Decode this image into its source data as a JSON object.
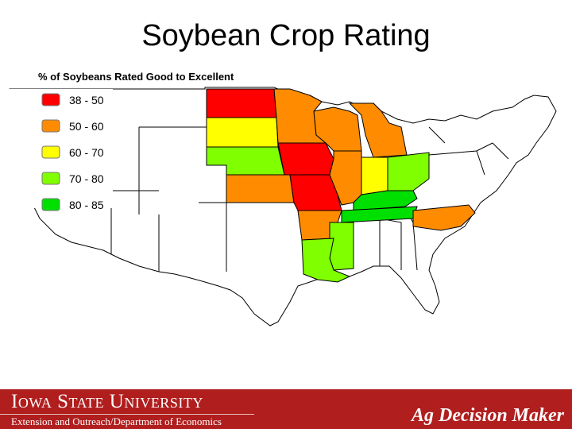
{
  "slide": {
    "title": "Soybean Crop Rating"
  },
  "map": {
    "heading": "% of Soybeans Rated Good to Excellent",
    "legend": [
      {
        "label": "38 - 50",
        "color": "#ff0000"
      },
      {
        "label": "50 - 60",
        "color": "#ff8c00"
      },
      {
        "label": "60 - 70",
        "color": "#ffff00"
      },
      {
        "label": "70 - 80",
        "color": "#80ff00"
      },
      {
        "label": "80 - 85",
        "color": "#00e000"
      }
    ],
    "states": [
      {
        "name": "North Dakota",
        "category": "38 - 50"
      },
      {
        "name": "Minnesota",
        "category": "50 - 60"
      },
      {
        "name": "South Dakota",
        "category": "60 - 70"
      },
      {
        "name": "Nebraska",
        "category": "70 - 80"
      },
      {
        "name": "Iowa",
        "category": "38 - 50"
      },
      {
        "name": "Wisconsin",
        "category": "50 - 60"
      },
      {
        "name": "Michigan",
        "category": "50 - 60"
      },
      {
        "name": "Illinois",
        "category": "50 - 60"
      },
      {
        "name": "Indiana",
        "category": "60 - 70"
      },
      {
        "name": "Ohio",
        "category": "70 - 80"
      },
      {
        "name": "Kansas",
        "category": "50 - 60"
      },
      {
        "name": "Missouri",
        "category": "38 - 50"
      },
      {
        "name": "Kentucky",
        "category": "80 - 85"
      },
      {
        "name": "Tennessee",
        "category": "80 - 85"
      },
      {
        "name": "Arkansas",
        "category": "50 - 60"
      },
      {
        "name": "Mississippi",
        "category": "70 - 80"
      },
      {
        "name": "Louisiana",
        "category": "70 - 80"
      },
      {
        "name": "North Carolina",
        "category": "50 - 60"
      }
    ]
  },
  "footer": {
    "university": "Iowa State University",
    "subtitle": "Extension and Outreach/Department of Economics",
    "brand": "Ag Decision Maker"
  }
}
